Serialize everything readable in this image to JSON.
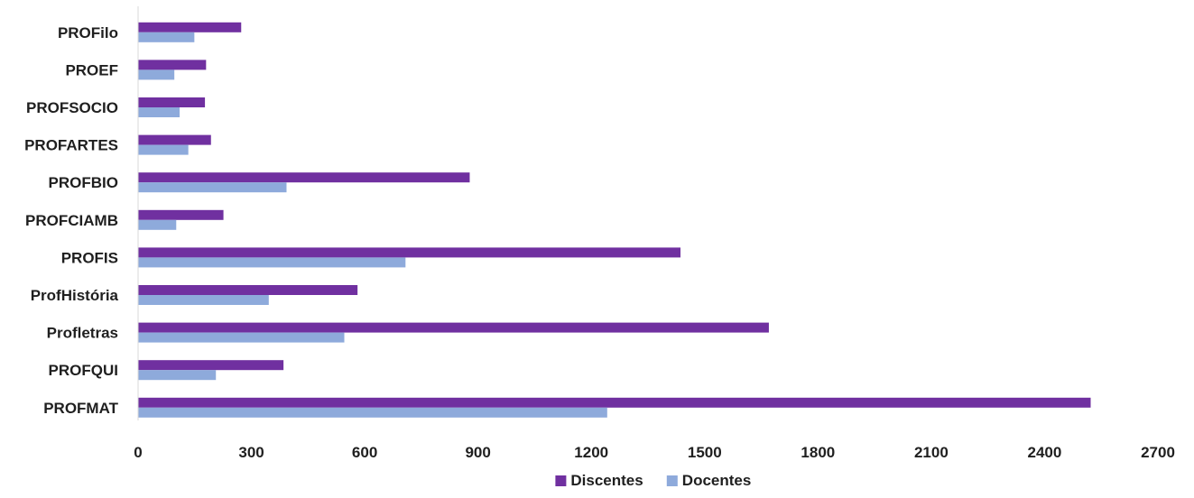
{
  "chart_data": {
    "type": "bar",
    "orientation": "horizontal",
    "title": "",
    "categories": [
      "PROFilo",
      "PROEF",
      "PROFSOCIO",
      "PROFARTES",
      "PROFBIO",
      "PROFCIAMB",
      "PROFIS",
      "ProfHistória",
      "Profletras",
      "PROFQUI",
      "PROFMAT"
    ],
    "series": [
      {
        "name": "Discentes",
        "color": "#7030a0",
        "values": [
          273,
          180,
          177,
          193,
          878,
          226,
          1436,
          581,
          1670,
          385,
          2522
        ]
      },
      {
        "name": "Docentes",
        "color": "#8eaadb",
        "values": [
          149,
          96,
          110,
          133,
          393,
          101,
          708,
          346,
          546,
          206,
          1242
        ]
      }
    ],
    "xticks": [
      "0",
      "300",
      "600",
      "900",
      "1200",
      "1500",
      "1800",
      "2100",
      "2400",
      "2700"
    ],
    "xlim": [
      0,
      2700
    ],
    "grid": false,
    "legend_position": "bottom"
  }
}
